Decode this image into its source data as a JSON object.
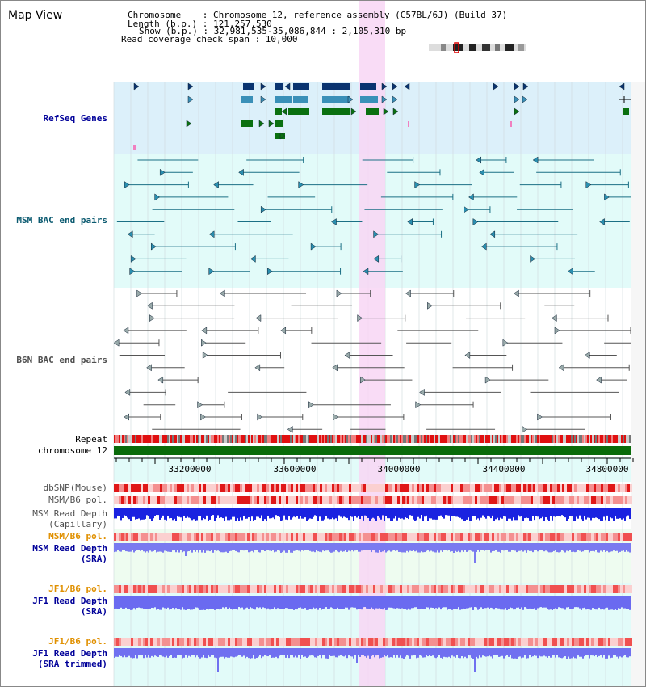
{
  "header": {
    "title": "Map View",
    "chromosome": "Chromosome    : Chromosome 12, reference assembly (C57BL/6J) (Build 37)",
    "length": "Length (b.p.) : 121,257,530",
    "show": "Show (b.p.) : 32,981,535-35,086,844 : 2,105,310 bp",
    "read_span": "Read coverage check span : 10,000"
  },
  "tracks": {
    "refseq": "RefSeq Genes",
    "msm_bac": "MSM BAC end pairs",
    "b6n_bac": "B6N BAC end pairs",
    "repeat": "Repeat",
    "chrom": "chromosome 12",
    "dbsnp": "dbSNP(Mouse)",
    "msm_pol": "MSM/B6 pol.",
    "msm_depth_cap_1": "MSM Read Depth",
    "msm_depth_cap_2": "(Capillary)",
    "msm_pol_sra": "MSM/B6 pol.",
    "msm_depth_sra_1": "MSM Read Depth",
    "msm_depth_sra_2": "(SRA)",
    "jf1_pol": "JF1/B6 pol.",
    "jf1_depth_1": "JF1 Read Depth",
    "jf1_depth_2": "(SRA)",
    "jf1_pol_tr": "JF1/B6 pol.",
    "jf1_trim_1": "JF1 Read Depth",
    "jf1_trim_2": "(SRA trimmed)"
  },
  "axis": {
    "ticks": [
      "33200000",
      "33600000",
      "34000000",
      "34400000",
      "34800000"
    ]
  },
  "colors": {
    "refseq_bg": "#dcf0fa",
    "msm_bg": "#e2fbf9",
    "highlight": "#f8d6f4",
    "gene_navy": "#0a3470",
    "gene_teal": "#3a90b8",
    "gene_green": "#0a7010",
    "bac_teal": "#1b6f85",
    "b6n_gray": "#555555",
    "label_blue": "#000099",
    "label_teal": "#0b5a70",
    "label_orange": "#e09000",
    "label_gray": "#4f4f4f"
  }
}
